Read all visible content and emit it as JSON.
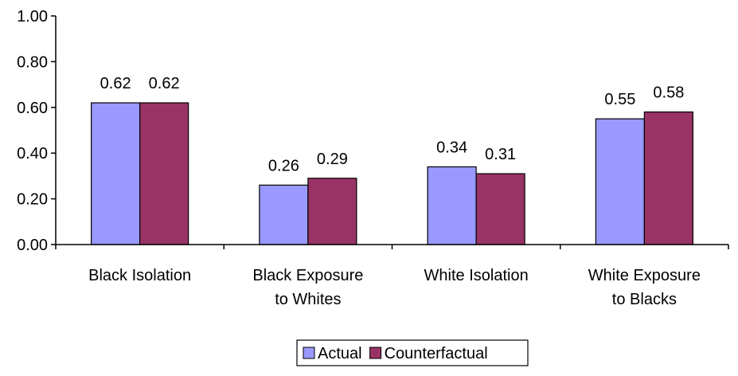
{
  "chart_data": {
    "type": "bar",
    "title": "",
    "xlabel": "",
    "ylabel": "",
    "ylim": [
      0,
      1
    ],
    "yticks": [
      "0.00",
      "0.20",
      "0.40",
      "0.60",
      "0.80",
      "1.00"
    ],
    "ytick_values": [
      0,
      0.2,
      0.4,
      0.6,
      0.8,
      1.0
    ],
    "grid": false,
    "legend_position": "bottom",
    "categories": [
      [
        "Black Isolation"
      ],
      [
        "Black Exposure",
        "to Whites"
      ],
      [
        "White Isolation"
      ],
      [
        "White Exposure",
        "to Blacks"
      ]
    ],
    "series": [
      {
        "name": "Actual",
        "color": "#9999ff",
        "values": [
          0.62,
          0.26,
          0.34,
          0.55
        ],
        "labels": [
          "0.62",
          "0.26",
          "0.34",
          "0.55"
        ]
      },
      {
        "name": "Counterfactual",
        "color": "#993366",
        "values": [
          0.62,
          0.29,
          0.31,
          0.58
        ],
        "labels": [
          "0.62",
          "0.29",
          "0.31",
          "0.58"
        ]
      }
    ]
  }
}
